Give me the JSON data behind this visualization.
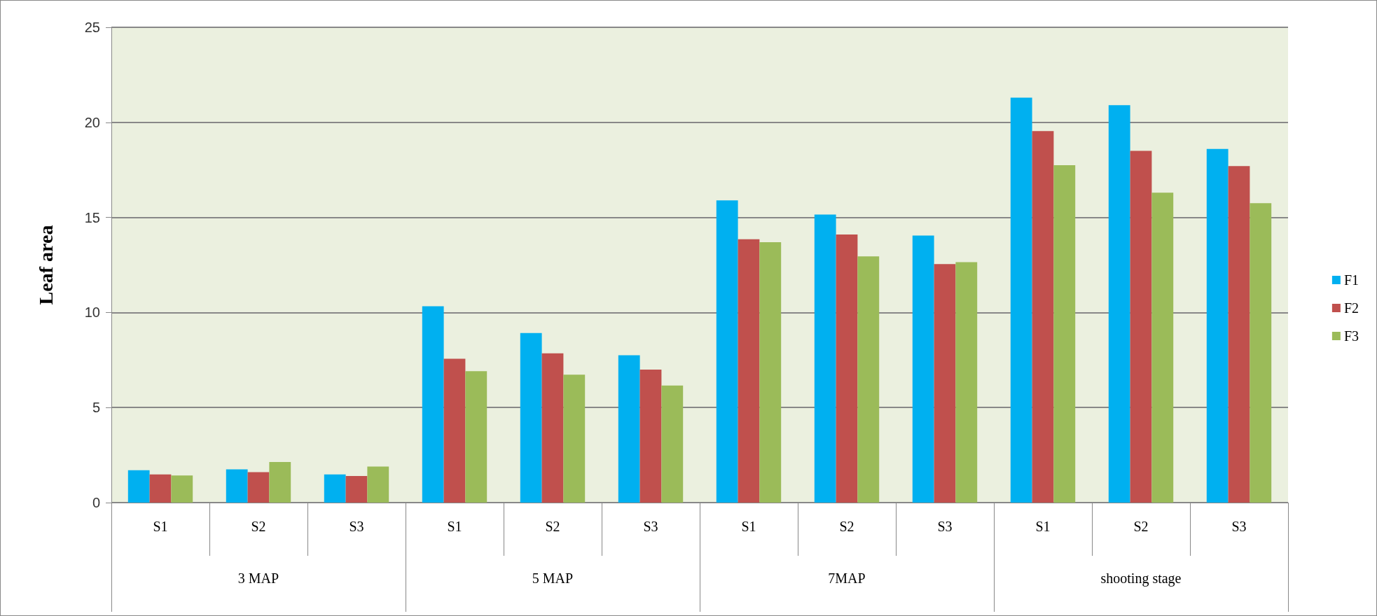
{
  "chart_data": {
    "type": "bar",
    "ylabel": "Leaf area",
    "categories": [
      "S1",
      "S2",
      "S3",
      "S1",
      "S2",
      "S3",
      "S1",
      "S2",
      "S3",
      "S1",
      "S2",
      "S3"
    ],
    "annotations": [
      "3 MAP",
      "5 MAP",
      "7MAP",
      "shooting stage"
    ],
    "series": [
      {
        "name": "F1",
        "color": "#00b0f0",
        "values": [
          1.7,
          1.75,
          1.48,
          10.33,
          8.92,
          7.75,
          15.9,
          15.15,
          14.05,
          21.3,
          20.9,
          18.6
        ]
      },
      {
        "name": "F2",
        "color": "#c0504d",
        "values": [
          1.48,
          1.6,
          1.4,
          7.57,
          7.85,
          7.0,
          13.85,
          14.1,
          12.55,
          19.54,
          18.5,
          17.7
        ]
      },
      {
        "name": "F3",
        "color": "#9bbb59",
        "values": [
          1.43,
          2.14,
          1.9,
          6.91,
          6.73,
          6.16,
          13.7,
          12.95,
          12.65,
          17.75,
          16.3,
          15.75
        ]
      }
    ],
    "ylim": [
      0,
      25
    ],
    "yticks": [
      0,
      5,
      10,
      15,
      20,
      25
    ],
    "grid": "y",
    "legend": "right"
  }
}
